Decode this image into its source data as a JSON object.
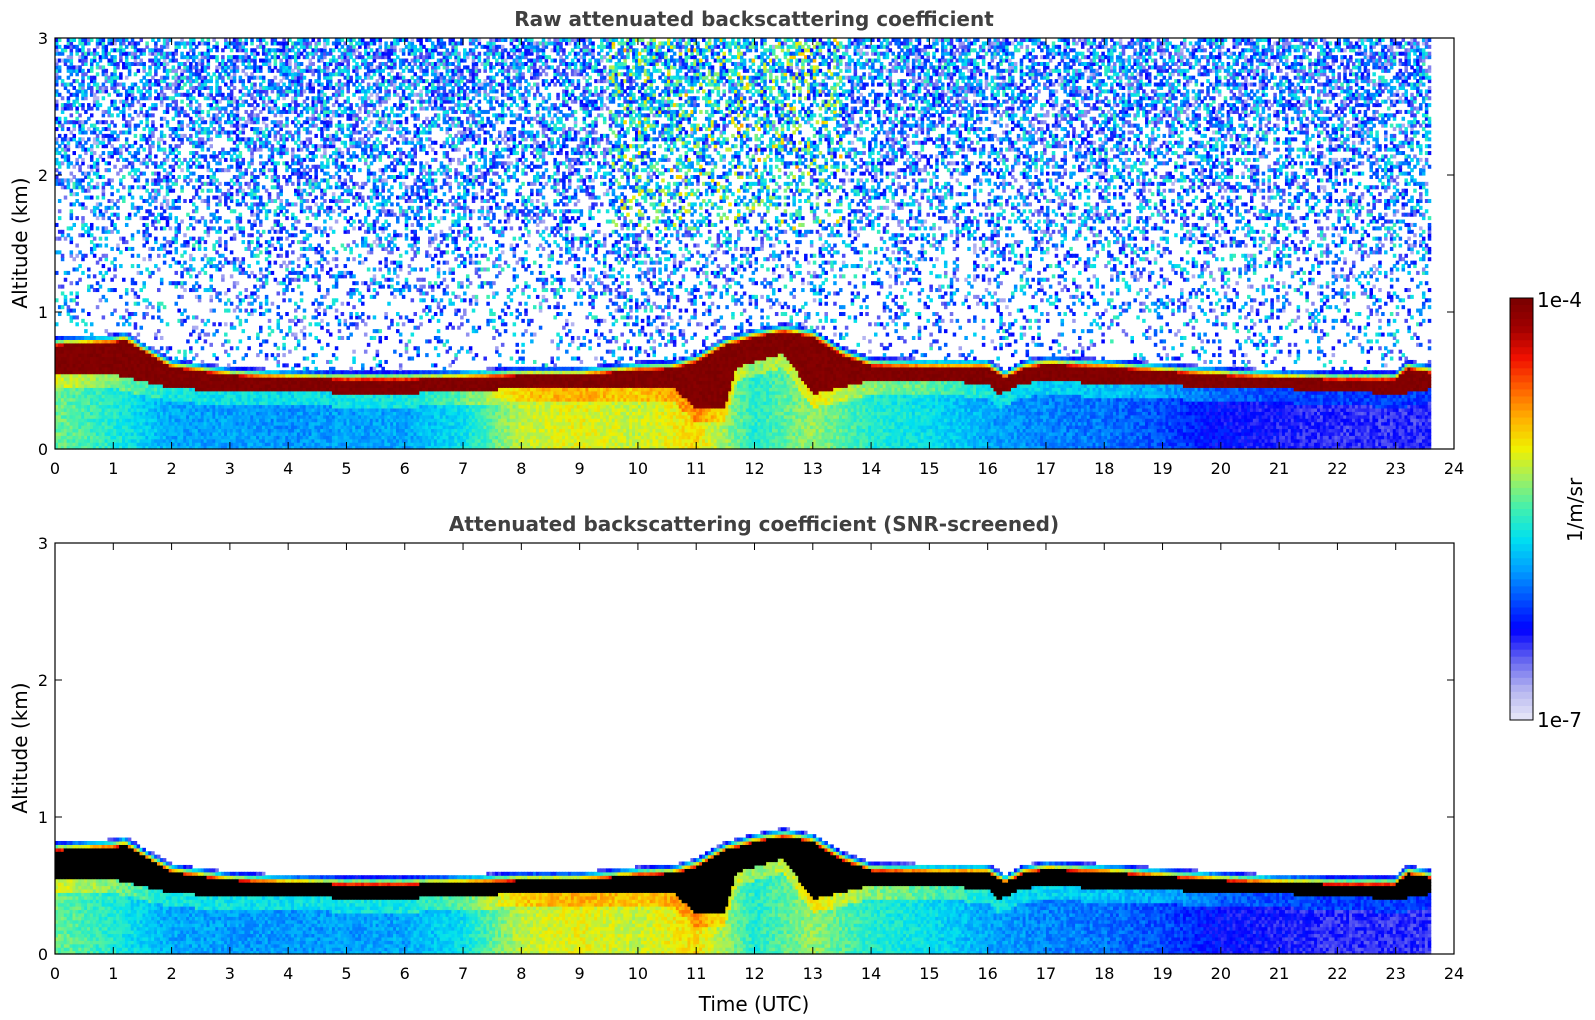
{
  "chart_data": [
    {
      "type": "heatmap",
      "title": "Raw attenuated backscattering coefficient",
      "xlabel": "",
      "ylabel": "Altitude (km)",
      "xlim": [
        0,
        24
      ],
      "ylim": [
        0,
        3
      ],
      "x_ticks": [
        "0",
        "1",
        "2",
        "3",
        "4",
        "5",
        "6",
        "7",
        "8",
        "9",
        "10",
        "11",
        "12",
        "13",
        "14",
        "15",
        "16",
        "17",
        "18",
        "19",
        "20",
        "21",
        "22",
        "23",
        "24"
      ],
      "y_ticks": [
        "0",
        "1",
        "2",
        "3"
      ],
      "data_end_hour": 23.6,
      "screened": false,
      "layer_top_km": [
        [
          0,
          0.82
        ],
        [
          0.5,
          0.83
        ],
        [
          1,
          0.84
        ],
        [
          1.2,
          0.86
        ],
        [
          1.5,
          0.78
        ],
        [
          2,
          0.66
        ],
        [
          3,
          0.6
        ],
        [
          4,
          0.58
        ],
        [
          5,
          0.57
        ],
        [
          6,
          0.57
        ],
        [
          7,
          0.58
        ],
        [
          8,
          0.6
        ],
        [
          9,
          0.6
        ],
        [
          10,
          0.64
        ],
        [
          10.6,
          0.65
        ],
        [
          11,
          0.7
        ],
        [
          11.5,
          0.82
        ],
        [
          12,
          0.88
        ],
        [
          12.5,
          0.92
        ],
        [
          13,
          0.88
        ],
        [
          13.5,
          0.75
        ],
        [
          14,
          0.67
        ],
        [
          15,
          0.66
        ],
        [
          16,
          0.66
        ],
        [
          16.3,
          0.58
        ],
        [
          16.6,
          0.65
        ],
        [
          17,
          0.68
        ],
        [
          18,
          0.66
        ],
        [
          19,
          0.63
        ],
        [
          20,
          0.6
        ],
        [
          21,
          0.58
        ],
        [
          22,
          0.57
        ],
        [
          23,
          0.57
        ],
        [
          23.2,
          0.65
        ],
        [
          23.6,
          0.62
        ]
      ],
      "layer_bottom_km": [
        [
          0,
          0.55
        ],
        [
          1,
          0.55
        ],
        [
          1.5,
          0.5
        ],
        [
          2,
          0.45
        ],
        [
          3,
          0.42
        ],
        [
          4,
          0.42
        ],
        [
          5,
          0.41
        ],
        [
          6,
          0.41
        ],
        [
          7,
          0.42
        ],
        [
          8,
          0.45
        ],
        [
          9,
          0.45
        ],
        [
          10,
          0.45
        ],
        [
          10.6,
          0.45
        ],
        [
          11,
          0.3
        ],
        [
          11.5,
          0.3
        ],
        [
          11.7,
          0.6
        ],
        [
          12.5,
          0.7
        ],
        [
          13,
          0.4
        ],
        [
          13.5,
          0.45
        ],
        [
          14,
          0.5
        ],
        [
          15,
          0.5
        ],
        [
          16,
          0.48
        ],
        [
          16.2,
          0.4
        ],
        [
          16.6,
          0.48
        ],
        [
          17,
          0.5
        ],
        [
          18,
          0.48
        ],
        [
          19,
          0.47
        ],
        [
          20,
          0.45
        ],
        [
          21,
          0.44
        ],
        [
          22,
          0.43
        ],
        [
          23,
          0.4
        ],
        [
          23.6,
          0.44
        ]
      ],
      "below_layer_log10_value": [
        [
          0,
          -5.4
        ],
        [
          1,
          -5.6
        ],
        [
          2,
          -5.9
        ],
        [
          4,
          -5.95
        ],
        [
          6,
          -5.9
        ],
        [
          7,
          -5.7
        ],
        [
          8,
          -5.2
        ],
        [
          9,
          -5.1
        ],
        [
          10,
          -5.2
        ],
        [
          11,
          -5.0
        ],
        [
          12,
          -5.6
        ],
        [
          13,
          -5.3
        ],
        [
          14,
          -5.6
        ],
        [
          15,
          -5.7
        ],
        [
          16,
          -5.9
        ],
        [
          17,
          -6.0
        ],
        [
          18,
          -6.05
        ],
        [
          19,
          -6.15
        ],
        [
          20,
          -6.35
        ],
        [
          21,
          -6.4
        ],
        [
          22,
          -6.45
        ],
        [
          23.6,
          -6.45
        ]
      ]
    },
    {
      "type": "heatmap",
      "title": "Attenuated backscattering coefficient (SNR-screened)",
      "xlabel": "Time (UTC)",
      "ylabel": "Altitude (km)",
      "xlim": [
        0,
        24
      ],
      "ylim": [
        0,
        3
      ],
      "x_ticks": [
        "0",
        "1",
        "2",
        "3",
        "4",
        "5",
        "6",
        "7",
        "8",
        "9",
        "10",
        "11",
        "12",
        "13",
        "14",
        "15",
        "16",
        "17",
        "18",
        "19",
        "20",
        "21",
        "22",
        "23",
        "24"
      ],
      "y_ticks": [
        "0",
        "1",
        "2",
        "3"
      ],
      "data_end_hour": 23.6,
      "screened": true
    }
  ],
  "colorbar": {
    "label": "1/m/sr",
    "max_label": "1e-4",
    "min_label": "1e-7",
    "scale": "log",
    "range_log10": [
      -7,
      -4
    ],
    "colors": [
      "#e8e8f8",
      "#b4b4f0",
      "#6464f0",
      "#0000ff",
      "#0050ff",
      "#00a0ff",
      "#00e0f0",
      "#40f0b0",
      "#a0f060",
      "#f0f000",
      "#ffb000",
      "#ff6000",
      "#f01000",
      "#a00000",
      "#780000"
    ]
  }
}
